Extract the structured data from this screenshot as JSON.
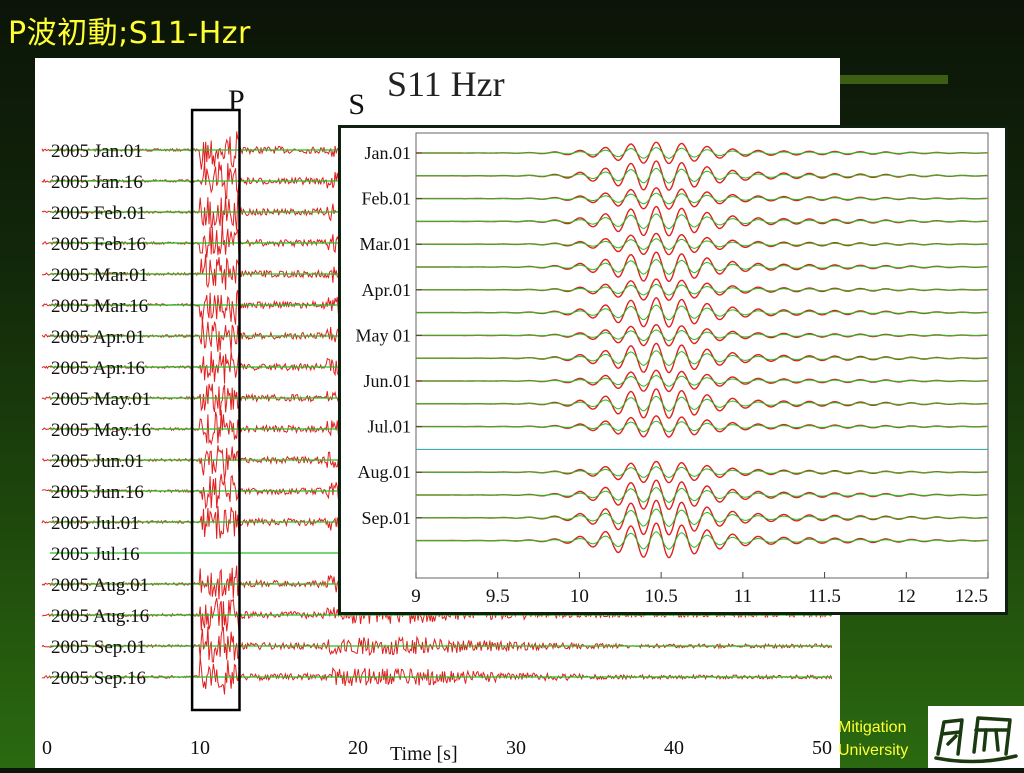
{
  "slide": {
    "title": "P波初動;S11-Hzr",
    "footer_lines": [
      "Mitigation",
      "University"
    ],
    "logo_icon": "university-logo-icon"
  },
  "colors": {
    "waveform": "#e02020",
    "reference": "#22c022",
    "title_text": "#ffff33"
  },
  "chart_data": [
    {
      "type": "line",
      "title": "S11 Hzr",
      "xlabel": "Time [s]",
      "ylabel": "",
      "xlim": [
        0,
        50
      ],
      "x_ticks": [
        0,
        10,
        20,
        30,
        40,
        50
      ],
      "x_tick_labels": [
        "0",
        "10",
        "20",
        "30",
        "40",
        "50"
      ],
      "series_labels": [
        "2005 Jan.01",
        "2005 Jan.16",
        "2005 Feb.01",
        "2005 Feb.16",
        "2005 Mar.01",
        "2005 Mar.16",
        "2005 Apr.01",
        "2005 Apr.16",
        "2005 May.01",
        "2005 May.16",
        "2005 Jun.01",
        "2005 Jun.16",
        "2005 Jul.01",
        "2005 Jul.16",
        "2005 Aug.01",
        "2005 Aug.16",
        "2005 Sep.01",
        "2005 Sep.16"
      ],
      "flat_traces": [
        "2005 Jul.16"
      ],
      "annotations": [
        "P",
        "S"
      ],
      "highlight_window": [
        9.5,
        12.5
      ],
      "p_arrival_s": 10,
      "s_arrival_s": 18
    },
    {
      "type": "line",
      "xlim": [
        9,
        12.5
      ],
      "x_ticks": [
        9,
        9.5,
        10,
        10.5,
        11,
        11.5,
        12,
        12.5
      ],
      "x_tick_labels": [
        "9",
        "9.5",
        "10",
        "10.5",
        "11",
        "11.5",
        "12",
        "12.5"
      ],
      "y_tick_labels": [
        "Jan.01",
        "Feb.01",
        "Mar.01",
        "Apr.01",
        "May 01",
        "Jun.01",
        "Jul.01",
        "Aug.01",
        "Sep.01"
      ],
      "trace_count": 18,
      "flat_trace_index": 13,
      "wavelet_center_s": 10.47
    }
  ]
}
